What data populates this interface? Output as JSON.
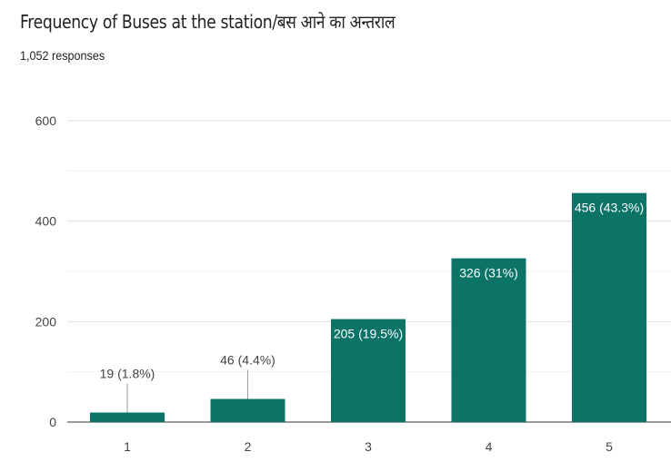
{
  "title": "Frequency of Buses at the station/बस आने का अन्तराल",
  "subtitle": "1,052 responses",
  "colors": {
    "bar": "#0b7467",
    "grid": "#e6e6e6",
    "axis": "#333333"
  },
  "chart_data": {
    "type": "bar",
    "title": "Frequency of Buses at the station/बस आने का अन्तराल",
    "categories": [
      "1",
      "2",
      "3",
      "4",
      "5"
    ],
    "values": [
      19,
      46,
      205,
      326,
      456
    ],
    "data_labels": [
      "19 (1.8%)",
      "46 (4.4%)",
      "205 (19.5%)",
      "326 (31%)",
      "456 (43.3%)"
    ],
    "ylim": [
      0,
      600
    ],
    "yticks": [
      "0",
      "200",
      "400",
      "600"
    ],
    "grid": true,
    "xlabel": "",
    "ylabel": ""
  }
}
